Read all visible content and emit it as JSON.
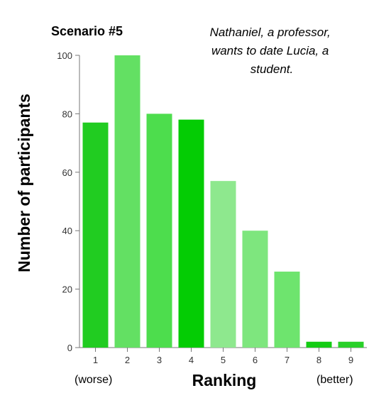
{
  "chart_data": {
    "type": "bar",
    "title": "Scenario #5",
    "annotation": [
      "Nathaniel, a professor,",
      "wants to date Lucia, a",
      "student."
    ],
    "xlabel": "Ranking",
    "ylabel": "Number of participants",
    "x_end_labels": {
      "left": "(worse)",
      "right": "(better)"
    },
    "categories": [
      "1",
      "2",
      "3",
      "4",
      "5",
      "6",
      "7",
      "8",
      "9"
    ],
    "values": [
      77,
      100,
      80,
      78,
      57,
      40,
      26,
      2,
      2
    ],
    "colors": [
      "#21cc21",
      "#63e063",
      "#4ddd4d",
      "#04cc04",
      "#8ee88e",
      "#7ee67e",
      "#6ee46e",
      "#14cc14",
      "#29d029"
    ],
    "ylim": [
      0,
      100
    ],
    "yticks": [
      0,
      20,
      40,
      60,
      80,
      100
    ],
    "grid": false,
    "legend": "none"
  }
}
